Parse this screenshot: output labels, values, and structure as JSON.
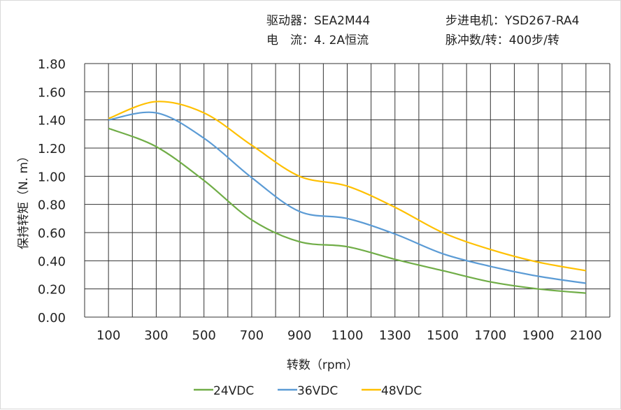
{
  "header": {
    "driver": "驱动器：SEA2M44",
    "motor": "步进电机：YSD267-RA4",
    "current": "电　流：4. 2A恒流",
    "pulses": "脉冲数/转：400步/转"
  },
  "chart_data": {
    "type": "line",
    "title": "",
    "xlabel": "转数（rpm）",
    "ylabel": "保持转矩（N. m）",
    "xlim": [
      0,
      2200
    ],
    "ylim": [
      0,
      1.8
    ],
    "x_ticks": [
      "100",
      "300",
      "500",
      "700",
      "900",
      "1100",
      "1300",
      "1500",
      "1700",
      "1900",
      "2100"
    ],
    "y_ticks": [
      "0.00",
      "0.20",
      "0.40",
      "0.60",
      "0.80",
      "1.00",
      "1.20",
      "1.40",
      "1.60",
      "1.80"
    ],
    "grid": true,
    "legend_position": "bottom",
    "x": [
      100,
      300,
      500,
      700,
      900,
      1100,
      1300,
      1500,
      1700,
      1900,
      2100
    ],
    "series": [
      {
        "name": "24VDC",
        "color": "#70ad47",
        "values": [
          1.34,
          1.21,
          0.97,
          0.69,
          0.535,
          0.5,
          0.41,
          0.33,
          0.25,
          0.2,
          0.17
        ]
      },
      {
        "name": "36VDC",
        "color": "#5b9bd5",
        "values": [
          1.4,
          1.45,
          1.27,
          0.99,
          0.75,
          0.7,
          0.59,
          0.45,
          0.36,
          0.29,
          0.24
        ]
      },
      {
        "name": "48VDC",
        "color": "#ffc000",
        "values": [
          1.41,
          1.53,
          1.45,
          1.22,
          1.0,
          0.93,
          0.78,
          0.6,
          0.48,
          0.39,
          0.33
        ]
      }
    ]
  }
}
